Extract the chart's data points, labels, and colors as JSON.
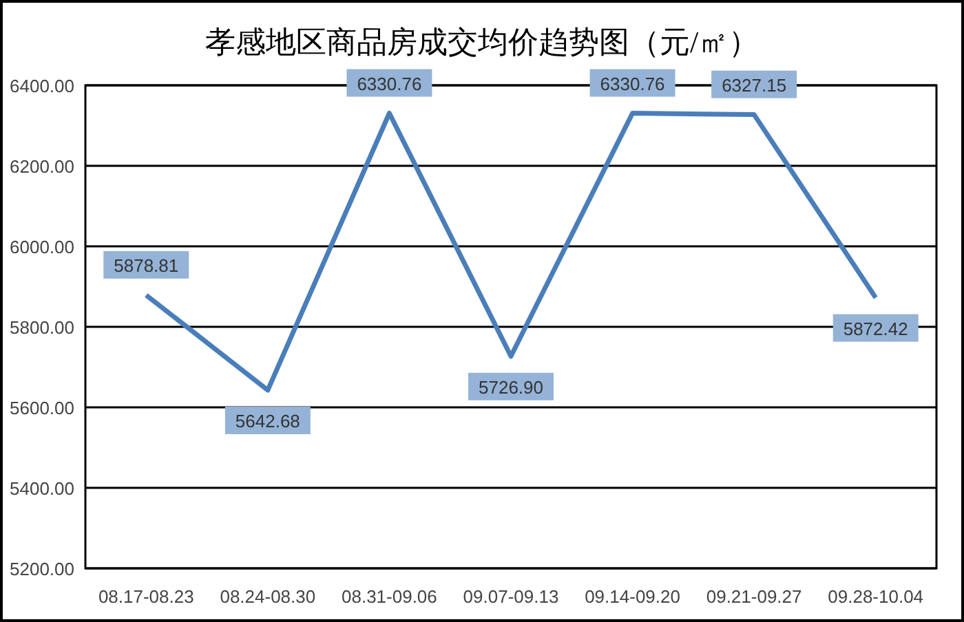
{
  "chart_data": {
    "type": "line",
    "title": "孝感地区商品房成交均价趋势图（元/㎡）",
    "categories": [
      "08.17-08.23",
      "08.24-08.30",
      "08.31-09.06",
      "09.07-09.13",
      "09.14-09.20",
      "09.21-09.27",
      "09.28-10.04"
    ],
    "series": [
      {
        "color": "#4a7ebb",
        "values": [
          5878.81,
          5642.68,
          6330.76,
          5726.9,
          6330.76,
          6327.15,
          5872.42
        ],
        "value_labels": [
          "5878.81",
          "5642.68",
          "6330.76",
          "5726.90",
          "6330.76",
          "6327.15",
          "5872.42"
        ]
      }
    ],
    "ylim": [
      5200,
      6400
    ],
    "yticks": [
      {
        "value": 5200,
        "label": "5200.00"
      },
      {
        "value": 5400,
        "label": "5400.00"
      },
      {
        "value": 5600,
        "label": "5600.00"
      },
      {
        "value": 5800,
        "label": "5800.00"
      },
      {
        "value": 6000,
        "label": "6000.00"
      },
      {
        "value": 6200,
        "label": "6200.00"
      },
      {
        "value": 6400,
        "label": "6400.00"
      }
    ],
    "grid": "y",
    "marker": "none",
    "line_style": "solid"
  }
}
